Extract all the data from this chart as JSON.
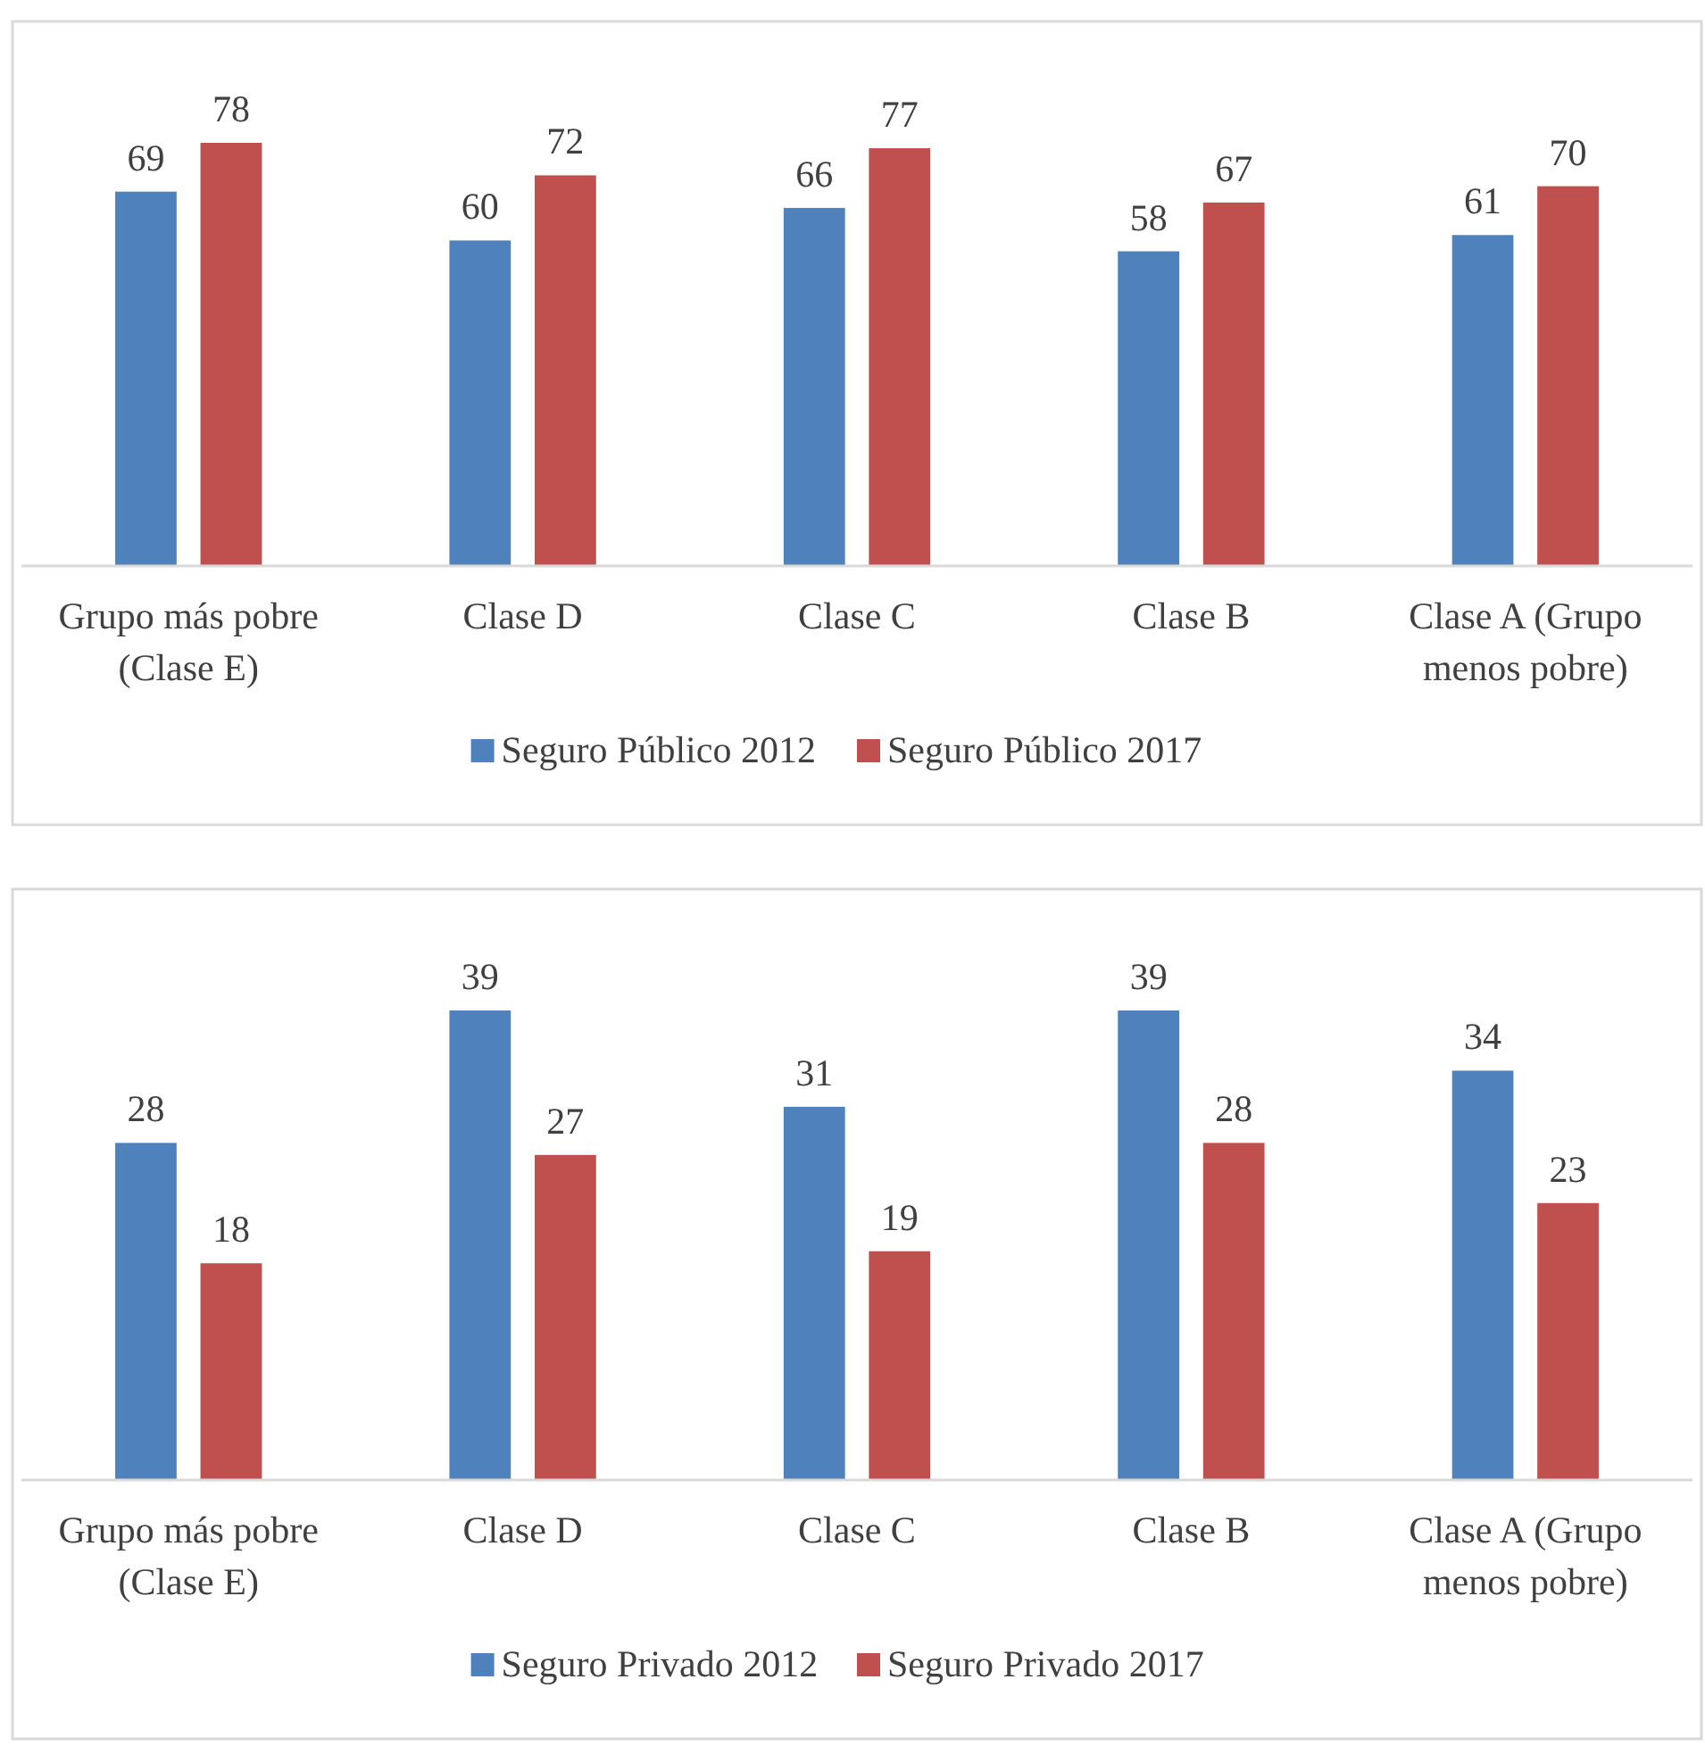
{
  "chart_data": [
    {
      "type": "bar",
      "categories": [
        "Grupo más pobre (Clase E)",
        "Clase D",
        "Clase C",
        "Clase B",
        "Clase A (Grupo menos pobre)"
      ],
      "series": [
        {
          "name": "Seguro Público 2012",
          "color": "#4f81bd",
          "values": [
            69,
            60,
            66,
            58,
            61
          ]
        },
        {
          "name": "Seguro Público 2017",
          "color": "#c0504d",
          "values": [
            78,
            72,
            77,
            67,
            70
          ]
        }
      ],
      "data_labels": true,
      "legend": "bottom",
      "grid": false
    },
    {
      "type": "bar",
      "categories": [
        "Grupo más pobre (Clase E)",
        "Clase D",
        "Clase C",
        "Clase B",
        "Clase A (Grupo menos pobre)"
      ],
      "series": [
        {
          "name": "Seguro Privado 2012",
          "color": "#4f81bd",
          "values": [
            28,
            39,
            31,
            39,
            34
          ]
        },
        {
          "name": "Seguro Privado 2017",
          "color": "#c0504d",
          "values": [
            18,
            27,
            19,
            28,
            23
          ]
        }
      ],
      "data_labels": true,
      "legend": "bottom",
      "grid": false
    }
  ]
}
